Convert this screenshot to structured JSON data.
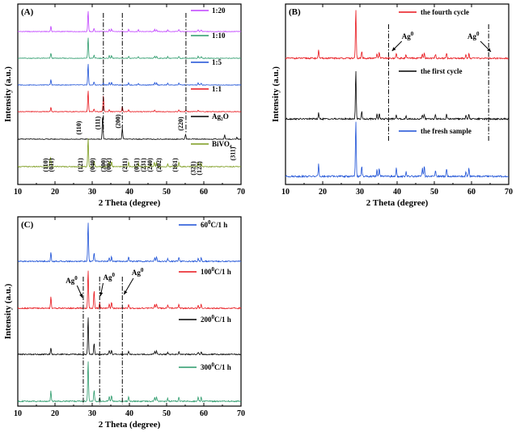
{
  "chart_data": [
    {
      "panel_label": "(A)",
      "type": "line",
      "xlabel": "2 Theta (degree)",
      "ylabel": "Intensity (a.u.)",
      "xlim": [
        10,
        70
      ],
      "xticks": [
        10,
        20,
        30,
        40,
        50,
        60,
        70
      ],
      "ref_lines_x": [
        33.0,
        38.1,
        55.2
      ],
      "series": [
        {
          "name": "1:20",
          "color": "#c040ff",
          "peaks": [
            [
              18.9,
              0.25
            ],
            [
              28.9,
              1.0
            ],
            [
              30.5,
              0.15
            ],
            [
              34.6,
              0.12
            ],
            [
              35.2,
              0.12
            ],
            [
              39.8,
              0.1
            ],
            [
              42.4,
              0.08
            ],
            [
              46.8,
              0.1
            ],
            [
              47.3,
              0.1
            ],
            [
              50.3,
              0.08
            ],
            [
              53.3,
              0.1
            ],
            [
              58.5,
              0.1
            ],
            [
              59.3,
              0.08
            ]
          ]
        },
        {
          "name": "1:10",
          "color": "#2a9a6a",
          "peaks": [
            [
              18.9,
              0.25
            ],
            [
              28.9,
              1.0
            ],
            [
              30.5,
              0.15
            ],
            [
              34.6,
              0.12
            ],
            [
              35.2,
              0.12
            ],
            [
              39.8,
              0.1
            ],
            [
              42.4,
              0.08
            ],
            [
              46.8,
              0.1
            ],
            [
              47.3,
              0.1
            ],
            [
              50.3,
              0.08
            ],
            [
              53.3,
              0.1
            ],
            [
              58.5,
              0.1
            ],
            [
              59.3,
              0.08
            ]
          ]
        },
        {
          "name": "1:5",
          "color": "#1a4fd6",
          "peaks": [
            [
              18.9,
              0.25
            ],
            [
              28.9,
              1.0
            ],
            [
              30.5,
              0.15
            ],
            [
              33.0,
              0.1
            ],
            [
              34.6,
              0.12
            ],
            [
              35.2,
              0.12
            ],
            [
              39.8,
              0.1
            ],
            [
              42.4,
              0.08
            ],
            [
              46.8,
              0.1
            ],
            [
              47.3,
              0.1
            ],
            [
              50.3,
              0.08
            ],
            [
              53.3,
              0.1
            ],
            [
              58.5,
              0.1
            ],
            [
              59.3,
              0.08
            ]
          ]
        },
        {
          "name": "1:1",
          "color": "#e8141a",
          "peaks": [
            [
              18.9,
              0.22
            ],
            [
              28.9,
              1.0
            ],
            [
              30.5,
              0.12
            ],
            [
              33.0,
              0.8
            ],
            [
              34.6,
              0.1
            ],
            [
              38.1,
              0.25
            ],
            [
              39.8,
              0.08
            ],
            [
              46.8,
              0.08
            ],
            [
              53.3,
              0.08
            ],
            [
              55.2,
              0.08
            ],
            [
              58.5,
              0.08
            ]
          ]
        },
        {
          "name": "Ag₂O",
          "color": "#000000",
          "peaks": [
            [
              32.8,
              1.0
            ],
            [
              38.1,
              0.45
            ],
            [
              55.1,
              0.2
            ],
            [
              65.6,
              0.18
            ],
            [
              68.9,
              0.08
            ]
          ]
        },
        {
          "name": "BiVO₄",
          "color": "#7a9a1a",
          "peaks": [
            [
              18.7,
              0.25
            ],
            [
              18.9,
              0.2
            ],
            [
              28.9,
              1.0
            ],
            [
              30.5,
              0.2
            ],
            [
              34.5,
              0.18
            ],
            [
              35.2,
              0.18
            ],
            [
              39.8,
              0.15
            ],
            [
              42.4,
              0.12
            ],
            [
              45.7,
              0.1
            ],
            [
              46.7,
              0.15
            ],
            [
              47.3,
              0.15
            ],
            [
              50.3,
              0.1
            ],
            [
              53.3,
              0.15
            ],
            [
              58.5,
              0.15
            ],
            [
              59.3,
              0.12
            ]
          ]
        }
      ],
      "hkl_ag2o": [
        {
          "label": "(110)",
          "x": 27.0
        },
        {
          "label": "(111)",
          "x": 32.1
        },
        {
          "label": "(200)",
          "x": 37.5
        },
        {
          "label": "(220)",
          "x": 54.4
        },
        {
          "label": "(311)",
          "x": 68.4
        }
      ],
      "hkl_bivo4": [
        {
          "label": "(110)",
          "x": 18.0
        },
        {
          "label": "(011)",
          "x": 19.6
        },
        {
          "label": "(121)",
          "x": 27.4
        },
        {
          "label": "(040)",
          "x": 30.6
        },
        {
          "label": "(200)",
          "x": 33.6
        },
        {
          "label": "(002)",
          "x": 35.0
        },
        {
          "label": "(211)",
          "x": 39.3
        },
        {
          "label": "(051)",
          "x": 42.5
        },
        {
          "label": "(231)",
          "x": 44.3
        },
        {
          "label": "(240)",
          "x": 46.1
        },
        {
          "label": "(202)",
          "x": 48.5
        },
        {
          "label": "(161)",
          "x": 52.8
        },
        {
          "label": "(321)",
          "x": 57.7
        },
        {
          "label": "(123)",
          "x": 59.3
        }
      ]
    },
    {
      "panel_label": "(B)",
      "type": "line",
      "xlabel": "2 Theta (degree)",
      "ylabel": "Intensity (a.u.)",
      "xlim": [
        10,
        70
      ],
      "xticks": [
        10,
        20,
        30,
        40,
        50,
        60,
        70
      ],
      "ref_lines_x": [
        37.7,
        64.6
      ],
      "annotations": [
        {
          "text": "Ag",
          "sup": "0",
          "x": 38.2
        },
        {
          "text": "Ag",
          "sup": "0",
          "x": 65.0
        }
      ],
      "series": [
        {
          "name": "the fourth cycle",
          "color": "#e8141a",
          "peaks": [
            [
              18.9,
              0.18
            ],
            [
              28.9,
              1.0
            ],
            [
              30.5,
              0.14
            ],
            [
              34.6,
              0.1
            ],
            [
              35.2,
              0.12
            ],
            [
              39.8,
              0.1
            ],
            [
              42.4,
              0.08
            ],
            [
              46.8,
              0.08
            ],
            [
              47.3,
              0.1
            ],
            [
              50.3,
              0.08
            ],
            [
              53.3,
              0.1
            ],
            [
              58.5,
              0.08
            ],
            [
              59.3,
              0.1
            ]
          ]
        },
        {
          "name": "the first cycle",
          "color": "#000000",
          "peaks": [
            [
              18.9,
              0.12
            ],
            [
              28.9,
              1.0
            ],
            [
              30.5,
              0.16
            ],
            [
              34.6,
              0.1
            ],
            [
              35.2,
              0.12
            ],
            [
              39.8,
              0.08
            ],
            [
              42.4,
              0.06
            ],
            [
              46.8,
              0.08
            ],
            [
              47.3,
              0.1
            ],
            [
              50.3,
              0.08
            ],
            [
              53.3,
              0.1
            ],
            [
              58.5,
              0.08
            ],
            [
              59.3,
              0.1
            ]
          ]
        },
        {
          "name": "the fresh sample",
          "color": "#1a4fd6",
          "peaks": [
            [
              18.9,
              0.22
            ],
            [
              28.9,
              1.0
            ],
            [
              30.5,
              0.18
            ],
            [
              34.6,
              0.12
            ],
            [
              35.2,
              0.15
            ],
            [
              39.8,
              0.15
            ],
            [
              42.4,
              0.08
            ],
            [
              46.8,
              0.15
            ],
            [
              47.3,
              0.18
            ],
            [
              50.3,
              0.1
            ],
            [
              53.3,
              0.15
            ],
            [
              58.5,
              0.1
            ],
            [
              59.3,
              0.15
            ]
          ]
        }
      ]
    },
    {
      "panel_label": "(C)",
      "type": "line",
      "xlabel": "2 Theta (degree)",
      "ylabel": "Intensity (a.u.)",
      "xlim": [
        10,
        70
      ],
      "xticks": [
        10,
        20,
        30,
        40,
        50,
        60,
        70
      ],
      "ref_lines_x": [
        27.6,
        32.0,
        38.1
      ],
      "annotations": [
        {
          "text": "Ag",
          "sup": "0",
          "x": 25.5
        },
        {
          "text": "Ag",
          "sup": "0",
          "x": 33.8
        },
        {
          "text": "Ag",
          "sup": "0",
          "x": 41.5
        }
      ],
      "series": [
        {
          "name": "60",
          "sup": "0",
          "suffix": "C/1 h",
          "color": "#1a4fd6",
          "peaks": [
            [
              18.9,
              0.22
            ],
            [
              28.9,
              1.0
            ],
            [
              30.5,
              0.22
            ],
            [
              34.6,
              0.1
            ],
            [
              35.2,
              0.12
            ],
            [
              39.8,
              0.12
            ],
            [
              46.8,
              0.1
            ],
            [
              47.3,
              0.12
            ],
            [
              50.3,
              0.08
            ],
            [
              53.3,
              0.1
            ],
            [
              58.5,
              0.08
            ],
            [
              59.3,
              0.1
            ]
          ]
        },
        {
          "name": "100",
          "sup": "0",
          "suffix": "C/1 h",
          "color": "#e8141a",
          "peaks": [
            [
              18.9,
              0.3
            ],
            [
              28.9,
              1.0
            ],
            [
              30.5,
              0.45
            ],
            [
              32.0,
              0.15
            ],
            [
              34.6,
              0.12
            ],
            [
              35.2,
              0.15
            ],
            [
              39.8,
              0.1
            ],
            [
              46.8,
              0.1
            ],
            [
              47.3,
              0.12
            ],
            [
              50.3,
              0.08
            ],
            [
              53.3,
              0.1
            ],
            [
              58.5,
              0.08
            ],
            [
              59.3,
              0.1
            ]
          ]
        },
        {
          "name": "200",
          "sup": "0",
          "suffix": "C/1 h",
          "color": "#000000",
          "peaks": [
            [
              18.9,
              0.18
            ],
            [
              28.9,
              1.0
            ],
            [
              30.5,
              0.3
            ],
            [
              34.6,
              0.1
            ],
            [
              35.2,
              0.12
            ],
            [
              39.8,
              0.1
            ],
            [
              46.8,
              0.08
            ],
            [
              47.3,
              0.1
            ],
            [
              50.3,
              0.06
            ],
            [
              53.3,
              0.08
            ],
            [
              58.5,
              0.06
            ],
            [
              59.3,
              0.08
            ]
          ]
        },
        {
          "name": "300",
          "sup": "0",
          "suffix": "C/1 h",
          "color": "#2a9a6a",
          "peaks": [
            [
              18.9,
              0.25
            ],
            [
              28.9,
              1.0
            ],
            [
              30.5,
              0.28
            ],
            [
              32.0,
              0.1
            ],
            [
              34.6,
              0.12
            ],
            [
              35.2,
              0.14
            ],
            [
              39.8,
              0.12
            ],
            [
              46.8,
              0.1
            ],
            [
              47.3,
              0.12
            ],
            [
              50.3,
              0.08
            ],
            [
              53.3,
              0.1
            ],
            [
              58.5,
              0.1
            ],
            [
              59.3,
              0.1
            ]
          ]
        }
      ]
    }
  ]
}
